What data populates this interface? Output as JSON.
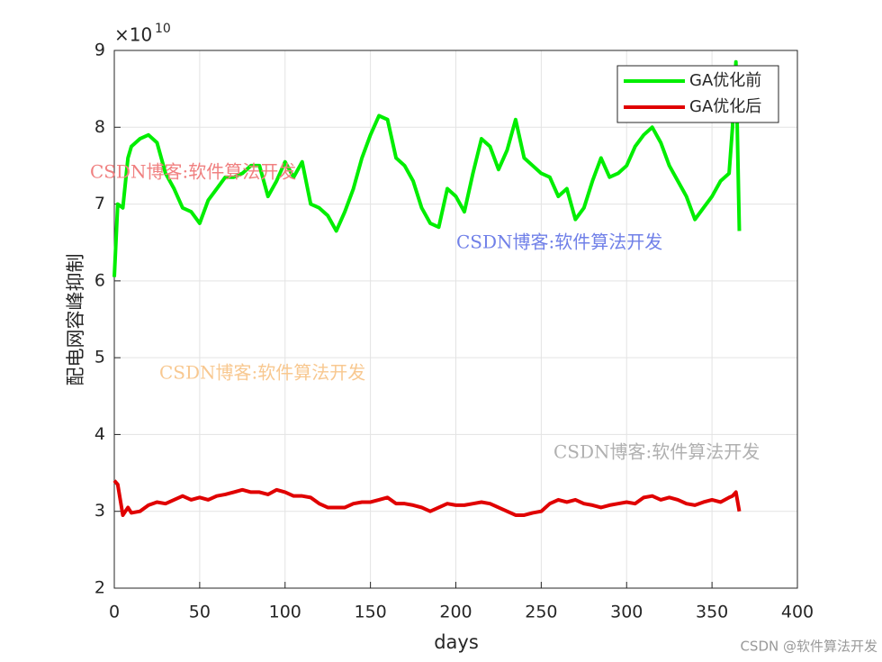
{
  "chart_data": {
    "type": "line",
    "xlabel": "days",
    "ylabel": "配电网容峰抑制",
    "y_multiplier": {
      "base": "×10",
      "exponent": "10"
    },
    "xlim": [
      0,
      400
    ],
    "xticks": [
      0,
      50,
      100,
      150,
      200,
      250,
      300,
      350,
      400
    ],
    "ylim": [
      2,
      9
    ],
    "yticks": [
      2,
      3,
      4,
      5,
      6,
      7,
      8,
      9
    ],
    "grid": true,
    "legend": "top-right",
    "x": [
      0,
      2,
      5,
      8,
      10,
      15,
      20,
      25,
      30,
      35,
      40,
      45,
      50,
      55,
      60,
      65,
      70,
      75,
      80,
      85,
      90,
      95,
      100,
      105,
      110,
      115,
      120,
      125,
      130,
      135,
      140,
      145,
      150,
      155,
      160,
      165,
      170,
      175,
      180,
      185,
      190,
      195,
      200,
      205,
      210,
      215,
      220,
      225,
      230,
      235,
      240,
      245,
      250,
      255,
      260,
      265,
      270,
      275,
      280,
      285,
      290,
      295,
      300,
      305,
      310,
      315,
      320,
      325,
      330,
      335,
      340,
      345,
      350,
      355,
      360,
      362,
      364,
      366
    ],
    "series": [
      {
        "name": "GA优化前",
        "color": "#00ee00",
        "values": [
          6.05,
          7.0,
          6.95,
          7.6,
          7.75,
          7.85,
          7.9,
          7.8,
          7.4,
          7.2,
          6.95,
          6.9,
          6.75,
          7.05,
          7.2,
          7.35,
          7.35,
          7.4,
          7.5,
          7.5,
          7.1,
          7.3,
          7.55,
          7.35,
          7.55,
          7.0,
          6.95,
          6.85,
          6.65,
          6.9,
          7.2,
          7.6,
          7.9,
          8.15,
          8.1,
          7.6,
          7.5,
          7.3,
          6.95,
          6.75,
          6.7,
          7.2,
          7.1,
          6.9,
          7.4,
          7.85,
          7.75,
          7.45,
          7.7,
          8.1,
          7.6,
          7.5,
          7.4,
          7.35,
          7.1,
          7.2,
          6.8,
          6.95,
          7.3,
          7.6,
          7.35,
          7.4,
          7.5,
          7.75,
          7.9,
          8.0,
          7.8,
          7.5,
          7.3,
          7.1,
          6.8,
          6.95,
          7.1,
          7.3,
          7.4,
          8.0,
          8.85,
          6.65
        ]
      },
      {
        "name": "GA优化后",
        "color": "#e00000",
        "values": [
          3.4,
          3.35,
          2.95,
          3.05,
          2.98,
          3.0,
          3.08,
          3.12,
          3.1,
          3.15,
          3.2,
          3.15,
          3.18,
          3.15,
          3.2,
          3.22,
          3.25,
          3.28,
          3.25,
          3.25,
          3.22,
          3.28,
          3.25,
          3.2,
          3.2,
          3.18,
          3.1,
          3.05,
          3.05,
          3.05,
          3.1,
          3.12,
          3.12,
          3.15,
          3.18,
          3.1,
          3.1,
          3.08,
          3.05,
          3.0,
          3.05,
          3.1,
          3.08,
          3.08,
          3.1,
          3.12,
          3.1,
          3.05,
          3.0,
          2.95,
          2.95,
          2.98,
          3.0,
          3.1,
          3.15,
          3.12,
          3.15,
          3.1,
          3.08,
          3.05,
          3.08,
          3.1,
          3.12,
          3.1,
          3.18,
          3.2,
          3.15,
          3.18,
          3.15,
          3.1,
          3.08,
          3.12,
          3.15,
          3.12,
          3.18,
          3.2,
          3.25,
          3.0
        ]
      }
    ],
    "watermarks": [
      {
        "text": "CSDN博客:软件算法开发",
        "color": "#f08080"
      },
      {
        "text": "CSDN博客:软件算法开发",
        "color": "#7080e8"
      },
      {
        "text": "CSDN博客:软件算法开发",
        "color": "#f8c890"
      },
      {
        "text": "CSDN博客:软件算法开发",
        "color": "#b0b0b0"
      }
    ],
    "footer": "CSDN @软件算法开发"
  }
}
